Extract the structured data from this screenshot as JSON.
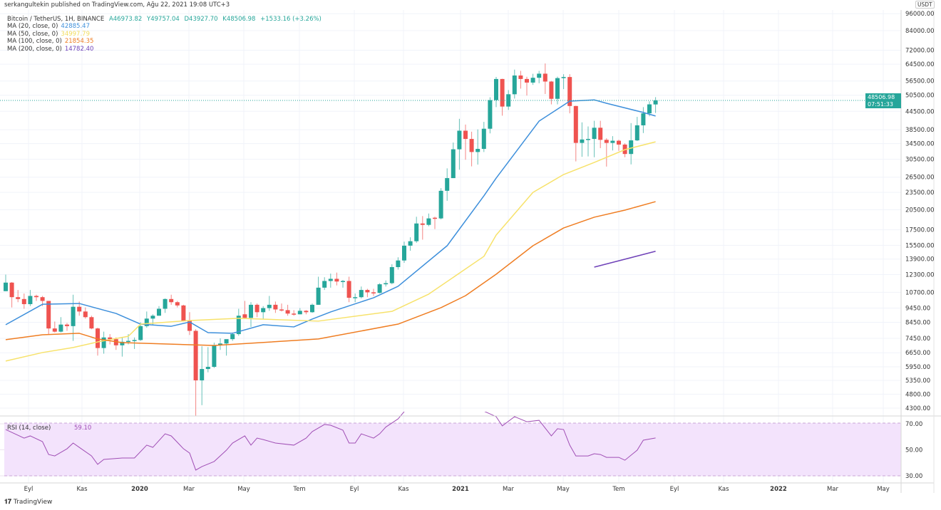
{
  "header": {
    "published": "serkangultekin published on TradingView.com, Ağu 22, 2021 19:08 UTC+3",
    "symbol": "Bitcoin / TetherUS, 1H, BINANCE",
    "open": "A46973.82",
    "high": "Y49757.04",
    "low": "D43927.70",
    "close": "K48506.98",
    "change": "+1533.16 (+3.26%)"
  },
  "indicators": [
    {
      "label": "MA (20, close, 0)",
      "value": "42885.47",
      "color": "#3d8fdb"
    },
    {
      "label": "MA (50, close, 0)",
      "value": "34997.79",
      "color": "#f7e26b"
    },
    {
      "label": "MA (100, close, 0)",
      "value": "21854.35",
      "color": "#ef7d22"
    },
    {
      "label": "MA (200, close, 0)",
      "value": "14782.40",
      "color": "#6f42b8"
    }
  ],
  "rsi_label": {
    "label": "RSI (14, close)",
    "value": "59.10"
  },
  "currency": "USDT",
  "last_price": {
    "price": "48506.98",
    "countdown": "07:51:33"
  },
  "footer": {
    "brand": "TradingView"
  },
  "colors": {
    "up": "#26a69a",
    "down": "#ef5350",
    "rsi": "#a04fb5",
    "rsi_band": "#f3e3fc"
  },
  "chart_data": {
    "type": "candlestick",
    "title": "Bitcoin / TetherUS, 1H, BINANCE",
    "y_scale": "log",
    "price_ticks": [
      "96000.00",
      "84000.00",
      "72000.00",
      "64500.00",
      "56500.00",
      "50500.00",
      "44500.00",
      "38500.00",
      "34500.00",
      "30500.00",
      "26500.00",
      "23500.00",
      "20500.00",
      "17500.00",
      "15500.00",
      "13900.00",
      "12300.00",
      "10700.00",
      "9450.00",
      "8450.00",
      "7450.00",
      "6650.00",
      "5950.00",
      "5350.00",
      "4800.00",
      "4300.00"
    ],
    "time_ticks": [
      "Eyl",
      "Kas",
      "2020",
      "Mar",
      "May",
      "Tem",
      "Eyl",
      "Kas",
      "2021",
      "Mar",
      "May",
      "Tem",
      "Eyl",
      "Kas",
      "2022",
      "Mar",
      "May"
    ],
    "rsi_ticks": [
      "70.00",
      "50.00",
      "30.00"
    ],
    "candles_ohlc": [
      [
        10800,
        12300,
        10800,
        11550
      ],
      [
        11550,
        11600,
        9500,
        10300
      ],
      [
        10300,
        10900,
        9900,
        10150
      ],
      [
        10150,
        10600,
        9400,
        9750
      ],
      [
        9750,
        10900,
        9600,
        10400
      ],
      [
        10400,
        10500,
        10000,
        10300
      ],
      [
        10300,
        10400,
        9600,
        10000
      ],
      [
        10000,
        10000,
        7700,
        8050
      ],
      [
        8050,
        8500,
        7800,
        7850
      ],
      [
        7850,
        8800,
        7800,
        8300
      ],
      [
        8300,
        8400,
        7900,
        8200
      ],
      [
        8200,
        10500,
        7300,
        9550
      ],
      [
        9550,
        9950,
        8900,
        9200
      ],
      [
        9200,
        9500,
        8700,
        8800
      ],
      [
        8800,
        8900,
        8000,
        8050
      ],
      [
        8050,
        8100,
        6500,
        6900
      ],
      [
        6900,
        7850,
        6600,
        7500
      ],
      [
        7500,
        7700,
        7100,
        7400
      ],
      [
        7400,
        7500,
        6800,
        7050
      ],
      [
        7050,
        7500,
        6450,
        7250
      ],
      [
        7250,
        7700,
        7100,
        7300
      ],
      [
        7300,
        7500,
        6850,
        7350
      ],
      [
        7350,
        8450,
        7300,
        8200
      ],
      [
        8200,
        9200,
        8100,
        8700
      ],
      [
        8700,
        9000,
        8300,
        8900
      ],
      [
        8900,
        9600,
        8900,
        9400
      ],
      [
        9400,
        10200,
        9100,
        10150
      ],
      [
        10150,
        10500,
        9700,
        9900
      ],
      [
        9900,
        10000,
        9500,
        9650
      ],
      [
        9650,
        9700,
        8500,
        8550
      ],
      [
        8550,
        9150,
        7650,
        7900
      ],
      [
        7900,
        8000,
        3800,
        5350
      ],
      [
        5350,
        7000,
        4400,
        5850
      ],
      [
        5850,
        6950,
        5700,
        5950
      ],
      [
        5950,
        7200,
        5900,
        7050
      ],
      [
        7050,
        7450,
        6800,
        7150
      ],
      [
        7150,
        7300,
        6500,
        7400
      ],
      [
        7400,
        7800,
        7300,
        7700
      ],
      [
        7700,
        9400,
        7600,
        8900
      ],
      [
        9000,
        10000,
        8700,
        8750
      ],
      [
        8750,
        9900,
        8150,
        9700
      ],
      [
        9700,
        9800,
        8800,
        9150
      ],
      [
        9150,
        9600,
        8650,
        9450
      ],
      [
        9450,
        10400,
        9250,
        9700
      ],
      [
        9700,
        9950,
        9100,
        9350
      ],
      [
        9350,
        9800,
        9200,
        9300
      ],
      [
        9300,
        9700,
        8900,
        9050
      ],
      [
        9050,
        9300,
        8900,
        9000
      ],
      [
        9000,
        9450,
        9000,
        9250
      ],
      [
        9250,
        9300,
        9000,
        9150
      ],
      [
        9150,
        9800,
        9100,
        9700
      ],
      [
        9700,
        12100,
        9700,
        11100
      ],
      [
        11100,
        12050,
        10900,
        11700
      ],
      [
        11700,
        12400,
        11100,
        11900
      ],
      [
        11900,
        12500,
        11300,
        11650
      ],
      [
        11650,
        11800,
        11100,
        11700
      ],
      [
        11700,
        12100,
        9900,
        10250
      ],
      [
        10250,
        10600,
        9900,
        10300
      ],
      [
        10300,
        11200,
        10200,
        10900
      ],
      [
        10900,
        11000,
        10300,
        10700
      ],
      [
        10700,
        11000,
        10400,
        10650
      ],
      [
        10650,
        11500,
        10600,
        11400
      ],
      [
        11400,
        11750,
        11200,
        11500
      ],
      [
        11500,
        13350,
        11400,
        13050
      ],
      [
        13050,
        14100,
        12800,
        13750
      ],
      [
        13750,
        15950,
        13500,
        15450
      ],
      [
        15450,
        16500,
        14850,
        16000
      ],
      [
        16000,
        19400,
        15800,
        18400
      ],
      [
        18400,
        19500,
        16200,
        18200
      ],
      [
        18200,
        19900,
        18000,
        19150
      ],
      [
        19250,
        19400,
        17600,
        19150
      ],
      [
        19150,
        24300,
        19000,
        23800
      ],
      [
        23800,
        28400,
        22000,
        26300
      ],
      [
        26300,
        34800,
        26300,
        33000
      ],
      [
        33000,
        41950,
        28100,
        38200
      ],
      [
        38200,
        40100,
        30400,
        35800
      ],
      [
        35800,
        37900,
        28850,
        32300
      ],
      [
        32300,
        38600,
        29250,
        33100
      ],
      [
        33100,
        40950,
        32300,
        38800
      ],
      [
        38800,
        49700,
        37400,
        48600
      ],
      [
        48600,
        58350,
        46000,
        57400
      ],
      [
        57400,
        57500,
        43000,
        46200
      ],
      [
        46200,
        52600,
        45000,
        50900
      ],
      [
        50900,
        61800,
        49200,
        59000
      ],
      [
        59000,
        61200,
        53200,
        57400
      ],
      [
        57400,
        58400,
        50400,
        55800
      ],
      [
        55800,
        59800,
        54800,
        57950
      ],
      [
        57950,
        61200,
        55500,
        59850
      ],
      [
        59850,
        64850,
        51000,
        56250
      ],
      [
        56250,
        56500,
        47000,
        49100
      ],
      [
        49100,
        58450,
        47000,
        57800
      ],
      [
        57800,
        59600,
        53000,
        58300
      ],
      [
        58300,
        59600,
        43800,
        46400
      ],
      [
        46400,
        46500,
        30000,
        34700
      ],
      [
        34700,
        40800,
        31100,
        35650
      ],
      [
        35650,
        39500,
        31200,
        35800
      ],
      [
        35800,
        41300,
        31000,
        39100
      ],
      [
        39100,
        41300,
        33300,
        35550
      ],
      [
        35550,
        36000,
        28800,
        34700
      ],
      [
        34700,
        36600,
        32700,
        35300
      ],
      [
        35300,
        35600,
        32600,
        34250
      ],
      [
        34250,
        34600,
        31000,
        31800
      ],
      [
        31800,
        40550,
        29300,
        35400
      ],
      [
        35400,
        42600,
        35200,
        39850
      ],
      [
        39850,
        46000,
        37500,
        43800
      ],
      [
        43800,
        48150,
        42800,
        47000
      ],
      [
        46973.82,
        49757.04,
        43927.7,
        48506.98
      ]
    ],
    "ma_series": [
      {
        "name": "MA (20, close, 0)",
        "color": "#3d8fdb",
        "points": [
          [
            0,
            8290
          ],
          [
            6,
            9740
          ],
          [
            12,
            9800
          ],
          [
            18,
            9060
          ],
          [
            22,
            8330
          ],
          [
            27,
            8190
          ],
          [
            30,
            8470
          ],
          [
            33,
            7790
          ],
          [
            37,
            7750
          ],
          [
            42,
            8290
          ],
          [
            47,
            8150
          ],
          [
            50,
            8670
          ],
          [
            53,
            9170
          ],
          [
            60,
            10250
          ],
          [
            64,
            11220
          ],
          [
            72,
            15440
          ],
          [
            78,
            22870
          ],
          [
            80,
            26300
          ],
          [
            87,
            41200
          ],
          [
            92,
            48200
          ],
          [
            96,
            48700
          ],
          [
            98,
            47400
          ],
          [
            104,
            44100
          ],
          [
            106,
            42885
          ]
        ]
      },
      {
        "name": "MA (50, close, 0)",
        "color": "#f7e26b",
        "points": [
          [
            0,
            6230
          ],
          [
            6,
            6660
          ],
          [
            11,
            6930
          ],
          [
            15,
            7240
          ],
          [
            20,
            7570
          ],
          [
            22,
            8330
          ],
          [
            30,
            8570
          ],
          [
            38,
            8720
          ],
          [
            51,
            8530
          ],
          [
            63,
            9210
          ],
          [
            69,
            10550
          ],
          [
            78,
            14200
          ],
          [
            80,
            16800
          ],
          [
            86,
            23500
          ],
          [
            91,
            27050
          ],
          [
            96,
            29750
          ],
          [
            101,
            32900
          ],
          [
            106,
            34998
          ]
        ]
      },
      {
        "name": "MA (100, close, 0)",
        "color": "#ef7d22",
        "points": [
          [
            0,
            7370
          ],
          [
            6,
            7660
          ],
          [
            12,
            7750
          ],
          [
            15,
            7410
          ],
          [
            19,
            7200
          ],
          [
            34,
            7040
          ],
          [
            51,
            7410
          ],
          [
            64,
            8330
          ],
          [
            71,
            9480
          ],
          [
            75,
            10420
          ],
          [
            80,
            12340
          ],
          [
            86,
            15440
          ],
          [
            91,
            17760
          ],
          [
            96,
            19330
          ],
          [
            101,
            20440
          ],
          [
            106,
            21854
          ]
        ]
      },
      {
        "name": "MA (200, close, 0)",
        "color": "#6f42b8",
        "points": [
          [
            96,
            13050
          ],
          [
            106,
            14782
          ]
        ]
      }
    ],
    "rsi": {
      "name": "RSI (14, close)",
      "points": [
        [
          0,
          65.6
        ],
        [
          3,
          59
        ],
        [
          4,
          60.7
        ],
        [
          6,
          56.3
        ],
        [
          7,
          46.4
        ],
        [
          8,
          45.3
        ],
        [
          10,
          50.8
        ],
        [
          11,
          55.2
        ],
        [
          12,
          51.9
        ],
        [
          14,
          45.3
        ],
        [
          15,
          38.8
        ],
        [
          16,
          42.6
        ],
        [
          19,
          43.7
        ],
        [
          21,
          43.7
        ],
        [
          23,
          53.6
        ],
        [
          24,
          51.9
        ],
        [
          26,
          62.3
        ],
        [
          27,
          60.7
        ],
        [
          29,
          50.8
        ],
        [
          30,
          47.5
        ],
        [
          31,
          34.4
        ],
        [
          32,
          37.1
        ],
        [
          34,
          41
        ],
        [
          36,
          49.7
        ],
        [
          37,
          55.2
        ],
        [
          39,
          60.7
        ],
        [
          40,
          53.6
        ],
        [
          41,
          59
        ],
        [
          42,
          57.9
        ],
        [
          44,
          55.2
        ],
        [
          47,
          53.6
        ],
        [
          49,
          59
        ],
        [
          50,
          64
        ],
        [
          52,
          69.5
        ],
        [
          53,
          68.9
        ],
        [
          55,
          65.1
        ],
        [
          56,
          55.2
        ],
        [
          57,
          55.2
        ],
        [
          58,
          62.3
        ],
        [
          60,
          59
        ],
        [
          61,
          62.3
        ],
        [
          62,
          67.5
        ],
        [
          64,
          73.8
        ],
        [
          66,
          85
        ],
        [
          70,
          88
        ],
        [
          76,
          84
        ],
        [
          80,
          75.5
        ],
        [
          81,
          68.4
        ],
        [
          83,
          75.5
        ],
        [
          85,
          71.6
        ],
        [
          87,
          72.7
        ],
        [
          89,
          60.7
        ],
        [
          90,
          66.2
        ],
        [
          91,
          65.6
        ],
        [
          92,
          53.6
        ],
        [
          93,
          45.3
        ],
        [
          95,
          45.3
        ],
        [
          96,
          47
        ],
        [
          97,
          46.4
        ],
        [
          98,
          44.2
        ],
        [
          100,
          44.2
        ],
        [
          101,
          42
        ],
        [
          103,
          49.7
        ],
        [
          104,
          57.4
        ],
        [
          106,
          59.1
        ]
      ]
    }
  }
}
